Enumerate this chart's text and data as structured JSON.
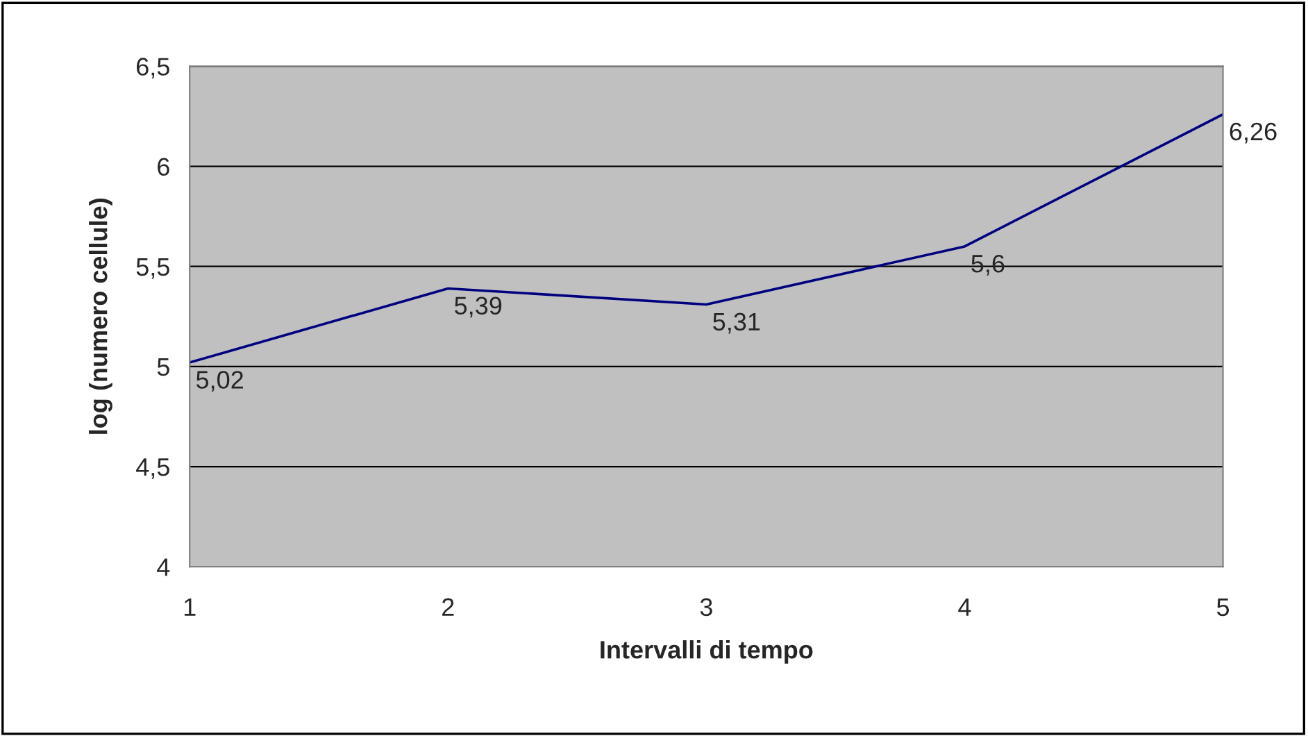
{
  "chart_data": {
    "type": "line",
    "xlabel": "Intervalli di tempo",
    "ylabel": "log (numero cellule)",
    "x": [
      1,
      2,
      3,
      4,
      5
    ],
    "series": [
      {
        "color": "#000080",
        "values": [
          5.02,
          5.39,
          5.31,
          5.6,
          6.26
        ],
        "value_labels": [
          "5,02",
          "5,39",
          "5,31",
          "5,6",
          "6,26"
        ]
      }
    ],
    "xlim": [
      1,
      5
    ],
    "xticks": [
      1,
      2,
      3,
      4,
      5
    ],
    "ylim": [
      4,
      6.5
    ],
    "yticks": [
      4,
      {
        "value": 4.5,
        "label": "4,5"
      },
      5,
      {
        "value": 5.5,
        "label": "5,5"
      },
      6,
      {
        "value": 6.5,
        "label": "6,5"
      }
    ],
    "grid": "y",
    "marker": "none",
    "line_style": "solid"
  }
}
